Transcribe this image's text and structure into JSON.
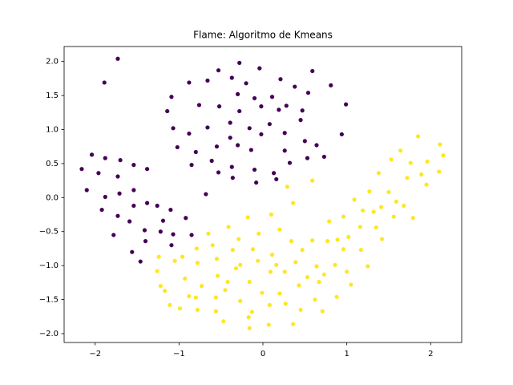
{
  "chart_data": {
    "type": "scatter",
    "title": "Flame: Algoritmo de Kmeans",
    "xlim": [
      -2.37,
      2.37
    ],
    "ylim": [
      -2.13,
      2.22
    ],
    "xticks": [
      {
        "value": -2,
        "label": "−2"
      },
      {
        "value": -1,
        "label": "−1"
      },
      0,
      1,
      2
    ],
    "yticks": [
      {
        "value": -2,
        "label": "−2.0"
      },
      {
        "value": -1.5,
        "label": "−1.5"
      },
      {
        "value": -1,
        "label": "−1.0"
      },
      {
        "value": -0.5,
        "label": "−0.5"
      },
      {
        "value": 0,
        "label": "0.0"
      },
      {
        "value": 0.5,
        "label": "0.5"
      },
      {
        "value": 1,
        "label": "1.0"
      },
      {
        "value": 1.5,
        "label": "1.5"
      },
      {
        "value": 2,
        "label": "2.0"
      }
    ],
    "series": [
      {
        "color": "#440154",
        "x": [
          -1.73,
          -1.89,
          -0.28,
          -0.53,
          -0.04,
          0.59,
          -0.88,
          -0.66,
          -0.37,
          -0.2,
          0.21,
          0.81,
          0.38,
          -1.09,
          -0.3,
          -0.1,
          0.11,
          0.54,
          0.99,
          -1.14,
          -0.76,
          -0.52,
          -0.28,
          -0.02,
          0.19,
          0.28,
          0.47,
          -1.07,
          -0.88,
          -0.66,
          -0.39,
          -0.16,
          0.08,
          0.45,
          0.94,
          -1.02,
          -0.55,
          -0.3,
          -0.02,
          0.26,
          0.5,
          -2.04,
          -1.88,
          -1.7,
          -0.8,
          -0.61,
          -0.39,
          -0.14,
          0.26,
          0.64,
          0.73,
          -2.16,
          -1.96,
          -1.54,
          -0.85,
          -0.53,
          -0.37,
          -0.1,
          0.13,
          0.32,
          0.53,
          -2.1,
          -1.73,
          -1.38,
          -0.36,
          -0.08,
          0.16,
          -1.88,
          -1.71,
          -1.54,
          -0.68,
          -1.92,
          -1.73,
          -1.54,
          -1.38,
          -1.26,
          -1.1,
          -1.78,
          -1.59,
          -1.41,
          -1.19,
          -0.92,
          -1.56,
          -1.4,
          -1.22,
          -1.07,
          -1.46,
          -1.09,
          -0.85
        ],
        "values": [
          2.04,
          1.69,
          1.98,
          1.87,
          1.9,
          1.86,
          1.69,
          1.72,
          1.76,
          1.68,
          1.74,
          1.65,
          1.63,
          1.48,
          1.52,
          1.46,
          1.48,
          1.54,
          1.37,
          1.27,
          1.36,
          1.34,
          1.27,
          1.34,
          1.29,
          1.35,
          1.28,
          1.02,
          0.94,
          1.03,
          1.1,
          1.02,
          1.08,
          1.14,
          0.93,
          0.74,
          0.75,
          0.77,
          0.93,
          0.95,
          0.83,
          0.63,
          0.58,
          0.55,
          0.67,
          0.54,
          0.88,
          0.7,
          0.69,
          0.77,
          0.6,
          0.42,
          0.36,
          0.48,
          0.48,
          0.37,
          0.45,
          0.41,
          0.36,
          0.51,
          0.58,
          0.11,
          0.31,
          0.42,
          0.29,
          0.22,
          0.27,
          0.01,
          0.06,
          0.11,
          0.05,
          -0.18,
          -0.27,
          -0.12,
          -0.08,
          -0.12,
          -0.18,
          -0.55,
          -0.35,
          -0.48,
          -0.34,
          -0.3,
          -0.8,
          -0.64,
          -0.5,
          -0.54,
          -0.94,
          -0.7,
          -0.55
        ]
      },
      {
        "color": "#fde725",
        "x": [
          1.85,
          2.11,
          2.15,
          1.64,
          1.76,
          1.96,
          1.53,
          1.89,
          2.1,
          1.38,
          1.72,
          1.09,
          1.27,
          1.5,
          1.95,
          1.59,
          1.41,
          1.32,
          1.19,
          1.68,
          1.79,
          0.59,
          0.29,
          0.36,
          0.79,
          0.96,
          1.56,
          1.35,
          1.16,
          1.02,
          0.89,
          1.42,
          -0.18,
          0.1,
          -0.41,
          -0.65,
          -0.05,
          0.2,
          -0.29,
          -0.79,
          -0.6,
          -0.36,
          0.34,
          0.59,
          0.77,
          0.96,
          1.17,
          1.25,
          0.47,
          0.11,
          -0.12,
          -0.96,
          -1.24,
          -0.55,
          -0.27,
          -0.06,
          0.16,
          0.39,
          0.64,
          0.86,
          -1.26,
          -0.78,
          -0.54,
          -0.32,
          0.09,
          0.26,
          0.53,
          0.73,
          1.0,
          -0.93,
          -1.22,
          -0.73,
          -0.42,
          -0.16,
          -0.01,
          0.2,
          0.43,
          0.67,
          1.05,
          -1.17,
          -0.88,
          -0.45,
          -0.27,
          0.27,
          0.62,
          0.88,
          -0.8,
          -0.56,
          0.08,
          -1.11,
          -0.78,
          -0.56,
          -0.13,
          0.45,
          0.71,
          -0.99,
          -0.47,
          -0.17,
          0.36,
          0.07,
          -0.16,
          -1.05
        ],
        "values": [
          0.9,
          0.78,
          0.62,
          0.69,
          0.51,
          0.53,
          0.56,
          0.34,
          0.38,
          0.36,
          0.29,
          -0.03,
          0.09,
          0.08,
          0.19,
          -0.06,
          -0.14,
          -0.21,
          -0.19,
          -0.12,
          -0.3,
          0.25,
          0.16,
          -0.08,
          -0.35,
          -0.28,
          -0.28,
          -0.44,
          -0.43,
          -0.58,
          -0.62,
          -0.61,
          -0.29,
          -0.25,
          -0.43,
          -0.53,
          -0.53,
          -0.47,
          -0.61,
          -0.75,
          -0.7,
          -0.77,
          -0.64,
          -0.63,
          -0.64,
          -0.76,
          -0.77,
          -1.01,
          -0.77,
          -0.84,
          -0.76,
          -0.87,
          -0.87,
          -0.9,
          -0.99,
          -0.93,
          -0.99,
          -0.95,
          -1.01,
          -0.99,
          -1.08,
          -0.96,
          -1.15,
          -1.04,
          -1.09,
          -1.09,
          -1.17,
          -1.13,
          -1.09,
          -1.19,
          -1.3,
          -1.3,
          -1.24,
          -1.24,
          -1.4,
          -1.41,
          -1.29,
          -1.24,
          -1.28,
          -1.37,
          -1.45,
          -1.36,
          -1.52,
          -1.56,
          -1.5,
          -1.46,
          -1.47,
          -1.47,
          -1.58,
          -1.58,
          -1.65,
          -1.67,
          -1.68,
          -1.65,
          -1.67,
          -1.63,
          -1.82,
          -1.76,
          -1.86,
          -1.87,
          -1.92,
          -0.93
        ]
      }
    ]
  }
}
